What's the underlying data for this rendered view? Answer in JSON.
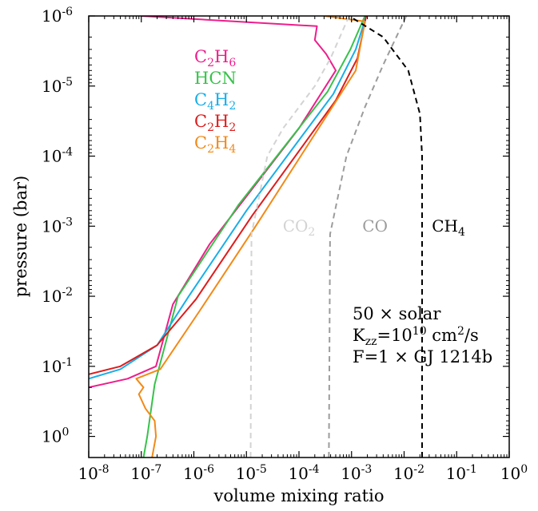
{
  "chart_data": {
    "type": "line",
    "xlabel": "volume mixing ratio",
    "ylabel": "pressure (bar)",
    "xscale": "log",
    "yscale": "log",
    "y_inverted": true,
    "xlim": [
      1e-08,
      1
    ],
    "ylim": [
      1e-06,
      2
    ],
    "x_ticks": [
      {
        "value": 1e-08,
        "base": "10",
        "exp": "-8"
      },
      {
        "value": 1e-07,
        "base": "10",
        "exp": "-7"
      },
      {
        "value": 1e-06,
        "base": "10",
        "exp": "-6"
      },
      {
        "value": 1e-05,
        "base": "10",
        "exp": "-5"
      },
      {
        "value": 0.0001,
        "base": "10",
        "exp": "-4"
      },
      {
        "value": 0.001,
        "base": "10",
        "exp": "-3"
      },
      {
        "value": 0.01,
        "base": "10",
        "exp": "-2"
      },
      {
        "value": 0.1,
        "base": "10",
        "exp": "-1"
      },
      {
        "value": 1,
        "base": "10",
        "exp": "0"
      }
    ],
    "y_ticks": [
      {
        "value": 1e-06,
        "base": "10",
        "exp": "-6"
      },
      {
        "value": 1e-05,
        "base": "10",
        "exp": "-5"
      },
      {
        "value": 0.0001,
        "base": "10",
        "exp": "-4"
      },
      {
        "value": 0.001,
        "base": "10",
        "exp": "-3"
      },
      {
        "value": 0.01,
        "base": "10",
        "exp": "-2"
      },
      {
        "value": 0.1,
        "base": "10",
        "exp": "-1"
      },
      {
        "value": 1,
        "base": "10",
        "exp": "0"
      }
    ],
    "legend_placement": "upper-left",
    "series": [
      {
        "name": "C2H6",
        "label_parts": [
          [
            "C",
            ""
          ],
          [
            "2",
            "sub"
          ],
          [
            "H",
            ""
          ],
          [
            "6",
            "sub"
          ]
        ],
        "color": "#ee1e8c",
        "dash": "solid",
        "in_legend": true,
        "points": [
          [
            1e-07,
            1e-06
          ],
          [
            0.00022,
            1.4e-06
          ],
          [
            0.0002,
            2.2e-06
          ],
          [
            0.00033,
            3.5e-06
          ],
          [
            0.0005,
            6e-06
          ],
          [
            0.0001,
            4e-05
          ],
          [
            2e-06,
            0.0018
          ],
          [
            4e-07,
            0.013
          ],
          [
            1.9e-07,
            0.1
          ],
          [
            5.5e-08,
            0.15
          ],
          [
            1e-08,
            0.2
          ]
        ]
      },
      {
        "name": "HCN",
        "label_parts": [
          [
            "HCN",
            ""
          ]
        ],
        "color": "#37c24a",
        "dash": "solid",
        "in_legend": true,
        "points": [
          [
            0.0018,
            1e-06
          ],
          [
            0.00095,
            3e-06
          ],
          [
            0.00035,
            1.2e-05
          ],
          [
            7e-06,
            0.0005
          ],
          [
            5e-07,
            0.01
          ],
          [
            1.8e-07,
            0.18
          ],
          [
            1.3e-07,
            1.0
          ],
          [
            1.1e-07,
            2.0
          ]
        ]
      },
      {
        "name": "C4H2",
        "label_parts": [
          [
            "C",
            ""
          ],
          [
            "4",
            "sub"
          ],
          [
            "H",
            ""
          ],
          [
            "2",
            "sub"
          ]
        ],
        "color": "#18aee8",
        "dash": "solid",
        "in_legend": true,
        "points": [
          [
            0.0019,
            1e-06
          ],
          [
            0.0012,
            3e-06
          ],
          [
            0.00045,
            1.3e-05
          ],
          [
            1e-05,
            0.0006
          ],
          [
            8e-07,
            0.01
          ],
          [
            2e-07,
            0.05
          ],
          [
            4e-08,
            0.11
          ],
          [
            1e-08,
            0.15
          ]
        ]
      },
      {
        "name": "C2H2",
        "label_parts": [
          [
            "C",
            ""
          ],
          [
            "2",
            "sub"
          ],
          [
            "H",
            ""
          ],
          [
            "2",
            "sub"
          ]
        ],
        "color": "#dd1c1c",
        "dash": "solid",
        "in_legend": true,
        "points": [
          [
            0.0019,
            1e-06
          ],
          [
            0.0013,
            4e-06
          ],
          [
            0.0005,
            1.6e-05
          ],
          [
            1.3e-05,
            0.0007
          ],
          [
            1.1e-06,
            0.011
          ],
          [
            2e-07,
            0.05
          ],
          [
            4e-08,
            0.1
          ],
          [
            1e-08,
            0.13
          ]
        ]
      },
      {
        "name": "C2H4",
        "label_parts": [
          [
            "C",
            ""
          ],
          [
            "2",
            "sub"
          ],
          [
            "H",
            ""
          ],
          [
            "4",
            "sub"
          ]
        ],
        "color": "#f28a17",
        "dash": "solid",
        "in_legend": true,
        "points": [
          [
            0.0003,
            1e-06
          ],
          [
            0.0018,
            1.2e-06
          ],
          [
            0.0012,
            6e-06
          ],
          [
            1.5e-05,
            0.001
          ],
          [
            1.3e-06,
            0.016
          ],
          [
            2.3e-07,
            0.11
          ],
          [
            8e-08,
            0.15
          ],
          [
            1.1e-07,
            0.2
          ],
          [
            9e-08,
            0.25
          ],
          [
            1.2e-07,
            0.4
          ],
          [
            1.8e-07,
            0.6
          ],
          [
            1.9e-07,
            1.0
          ],
          [
            1.6e-07,
            2.0
          ]
        ]
      },
      {
        "name": "CO2",
        "label_parts": [
          [
            "CO",
            ""
          ],
          [
            "2",
            "sub"
          ]
        ],
        "color": "#d3d3d3",
        "dash": "dashed",
        "in_legend": false,
        "label_at": [
          0.0001,
          0.0012
        ],
        "points": [
          [
            1.2e-05,
            2.0
          ],
          [
            1.25e-05,
            0.0013
          ],
          [
            2.5e-05,
            0.0001
          ],
          [
            5e-05,
            4e-05
          ],
          [
            0.0002,
            1e-05
          ],
          [
            0.0004,
            4e-06
          ],
          [
            0.0009,
            1e-06
          ]
        ]
      },
      {
        "name": "CO",
        "label_parts": [
          [
            "CO",
            ""
          ]
        ],
        "color": "#9c9c9c",
        "dash": "dashed",
        "in_legend": false,
        "label_at": [
          0.0028,
          0.0012
        ],
        "points": [
          [
            0.00037,
            2.0
          ],
          [
            0.00039,
            0.0013
          ],
          [
            0.0008,
            0.0001
          ],
          [
            0.0018,
            2e-05
          ],
          [
            0.004,
            5e-06
          ],
          [
            0.011,
            1e-06
          ]
        ]
      },
      {
        "name": "CH4",
        "label_parts": [
          [
            "CH",
            ""
          ],
          [
            "4",
            "sub"
          ]
        ],
        "color": "#000000",
        "dash": "dashed",
        "in_legend": false,
        "label_at": [
          0.07,
          0.0012
        ],
        "points": [
          [
            0.022,
            2.0
          ],
          [
            0.022,
            0.0001
          ],
          [
            0.02,
            2.5e-05
          ],
          [
            0.012,
            6e-06
          ],
          [
            0.004,
            2e-06
          ],
          [
            0.0009,
            1e-06
          ]
        ]
      }
    ],
    "annotations": [
      {
        "parts": [
          [
            "50 × solar",
            ""
          ]
        ]
      },
      {
        "parts": [
          [
            "K",
            ""
          ],
          [
            "zz",
            "sub"
          ],
          [
            "=10",
            ""
          ],
          [
            "10",
            "sup"
          ],
          [
            "  cm",
            ""
          ],
          [
            "2",
            "sup"
          ],
          [
            "/s",
            ""
          ]
        ]
      },
      {
        "parts": [
          [
            "F=1 × GJ 1214b",
            ""
          ]
        ]
      }
    ]
  }
}
